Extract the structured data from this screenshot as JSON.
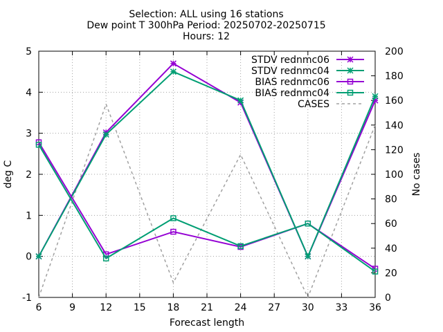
{
  "chart_data": {
    "type": "line",
    "title_lines": [
      "Selection: ALL using    16 stations",
      "Dew point T 300hPa   Period: 20250702-20250715",
      "Hours: 12"
    ],
    "xlabel": "Forecast length",
    "ylabel": "deg C",
    "y2label": "No cases",
    "x": [
      6,
      12,
      18,
      24,
      30,
      36
    ],
    "xlim": [
      6,
      36
    ],
    "ylim": [
      -1,
      5
    ],
    "y2lim": [
      0,
      200
    ],
    "xticks": [
      "6",
      "9",
      "12",
      "15",
      "18",
      "21",
      "24",
      "27",
      "30",
      "33",
      "36"
    ],
    "yticks": [
      "-1",
      "0",
      "1",
      "2",
      "3",
      "4",
      "5"
    ],
    "y2ticks": [
      "0",
      "20",
      "40",
      "60",
      "80",
      "100",
      "120",
      "140",
      "160",
      "180",
      "200"
    ],
    "grid": true,
    "legend_position": "top-right",
    "series": [
      {
        "name": "STDV rednmc06",
        "axis": "y",
        "marker": "x",
        "color": "#9400D3",
        "values": [
          0.0,
          3.02,
          4.7,
          3.75,
          0.0,
          3.8
        ]
      },
      {
        "name": "STDV rednmc04",
        "axis": "y",
        "marker": "x",
        "color": "#009E73",
        "values": [
          0.0,
          2.97,
          4.5,
          3.8,
          0.0,
          3.9
        ]
      },
      {
        "name": "BIAS rednmc06",
        "axis": "y",
        "marker": "square",
        "color": "#9400D3",
        "values": [
          2.78,
          0.05,
          0.6,
          0.23,
          0.8,
          -0.3
        ]
      },
      {
        "name": "BIAS rednmc04",
        "axis": "y",
        "marker": "square",
        "color": "#009E73",
        "values": [
          2.72,
          -0.05,
          0.93,
          0.25,
          0.8,
          -0.37
        ]
      },
      {
        "name": "CASES",
        "axis": "y2",
        "marker": "none",
        "color": "#A0A0A0",
        "dashed": true,
        "values": [
          0,
          157,
          12,
          116,
          0,
          140
        ]
      }
    ]
  }
}
